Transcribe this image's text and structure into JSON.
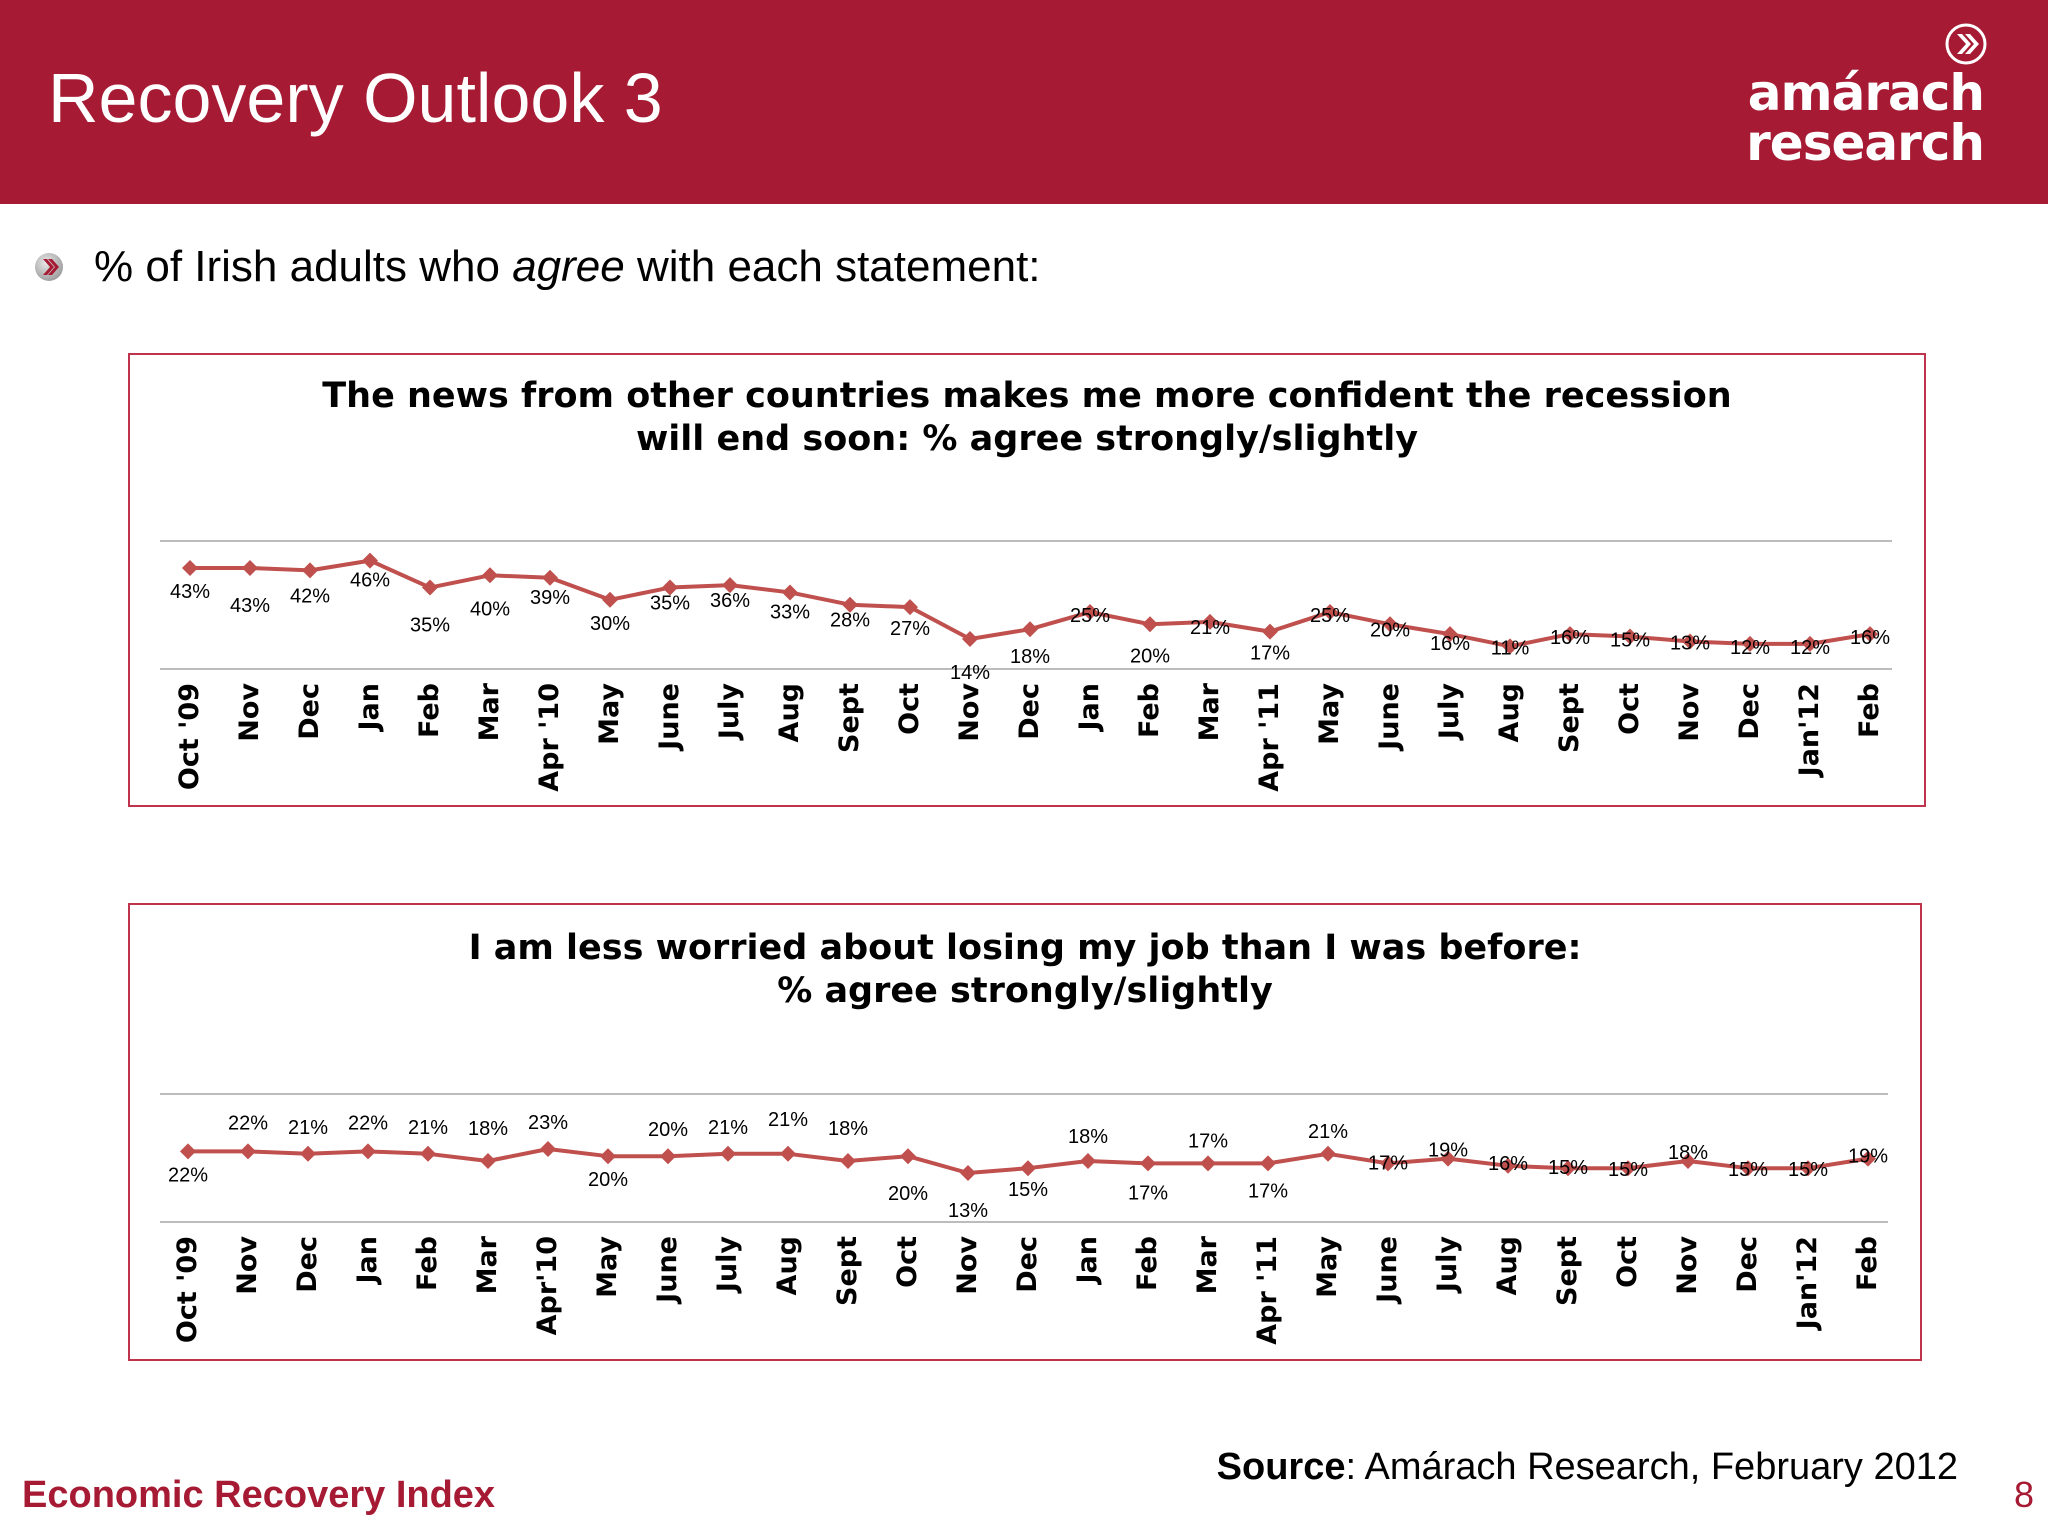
{
  "header": {
    "title": "Recovery Outlook 3"
  },
  "logo": {
    "line1": "amárach",
    "line2": "research",
    "icon": "chevron-circle-icon"
  },
  "intro": {
    "prefix": "% of Irish adults who ",
    "emphasis": "agree",
    "suffix": " with each statement:",
    "icon": "chevron-circle-icon"
  },
  "colors": {
    "brand": "#a61a33",
    "series": "#c0504d",
    "box_border": "#c0334d"
  },
  "chart_data": [
    {
      "type": "line",
      "title_line1": "The news from other countries makes me more confident the recession",
      "title_line2": "will end soon:  % agree strongly/slightly",
      "categories": [
        "Oct '09",
        "Nov",
        "Dec",
        "Jan",
        "Feb",
        "Mar",
        "Apr '10",
        "May",
        "June",
        "July",
        "Aug",
        "Sept",
        "Oct",
        "Nov",
        "Dec",
        "Jan",
        "Feb",
        "Mar",
        "Apr '11",
        "May",
        "June",
        "July",
        "Aug",
        "Sept",
        "Oct",
        "Nov",
        "Dec",
        "Jan'12",
        "Feb"
      ],
      "values": [
        43,
        43,
        42,
        46,
        35,
        40,
        39,
        30,
        35,
        36,
        33,
        28,
        27,
        14,
        18,
        25,
        20,
        21,
        17,
        25,
        20,
        16,
        11,
        16,
        15,
        13,
        12,
        12,
        16
      ],
      "value_labels": [
        "43%",
        "43%",
        "42%",
        "46%",
        "35%",
        "40%",
        "39%",
        "30%",
        "35%",
        "36%",
        "33%",
        "28%",
        "27%",
        "14%",
        "18%",
        "25%",
        "20%",
        "21%",
        "17%",
        "25%",
        "20%",
        "16%",
        "11%",
        "16%",
        "15%",
        "13%",
        "12%",
        "12%",
        "16%"
      ],
      "grid": true
    },
    {
      "type": "line",
      "title_line1": "I am less worried about losing my job than I was before:",
      "title_line2": "% agree strongly/slightly",
      "categories": [
        "Oct '09",
        "Nov",
        "Dec",
        "Jan",
        "Feb",
        "Mar",
        "Apr'10",
        "May",
        "June",
        "July",
        "Aug",
        "Sept",
        "Oct",
        "Nov",
        "Dec",
        "Jan",
        "Feb",
        "Mar",
        "Apr '11",
        "May",
        "June",
        "July",
        "Aug",
        "Sept",
        "Oct",
        "Nov",
        "Dec",
        "Jan'12",
        "Feb"
      ],
      "values": [
        22,
        22,
        21,
        22,
        21,
        18,
        23,
        20,
        20,
        21,
        21,
        18,
        20,
        13,
        15,
        18,
        17,
        17,
        17,
        21,
        17,
        19,
        16,
        15,
        15,
        18,
        15,
        15,
        19
      ],
      "value_labels": [
        "22%",
        "22%",
        "21%",
        "22%",
        "21%",
        "18%",
        "23%",
        "20%",
        "20%",
        "21%",
        "21%",
        "18%",
        "20%",
        "13%",
        "15%",
        "18%",
        "17%",
        "17%",
        "17%",
        "21%",
        "17%",
        "19%",
        "16%",
        "15%",
        "15%",
        "18%",
        "15%",
        "15%",
        "19%"
      ],
      "grid": true
    }
  ],
  "footer": {
    "index_label": "Economic Recovery Index",
    "source_bold": "Source",
    "source_rest": ": Amárach Research, February 2012",
    "page_number": "8"
  }
}
